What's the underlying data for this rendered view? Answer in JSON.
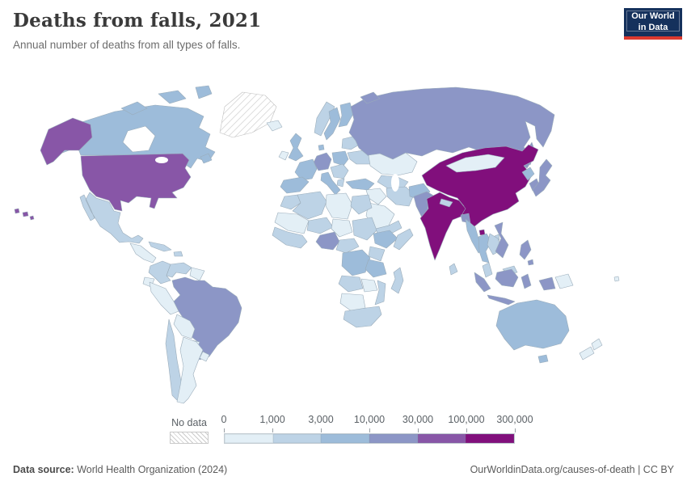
{
  "header": {
    "title": "Deaths from falls, 2021",
    "subtitle": "Annual number of deaths from all types of falls.",
    "logo_line1": "Our World",
    "logo_line2": "in Data",
    "logo_bg_color": "#15315c",
    "logo_accent_color": "#dc3a2f"
  },
  "legend": {
    "no_data_label": "No data",
    "tick_labels": [
      "0",
      "1,000",
      "3,000",
      "10,000",
      "30,000",
      "100,000",
      "300,000"
    ],
    "bin_colors": [
      "#e3eff6",
      "#bdd3e6",
      "#9dbcda",
      "#8c96c6",
      "#8856a7",
      "#810f7c"
    ],
    "no_data_pattern": "diagonal-hatch"
  },
  "footer": {
    "source_label": "Data source:",
    "source_text": "World Health Organization (2024)",
    "credit": "OurWorldinData.org/causes-of-death | CC BY"
  },
  "chart_data": {
    "type": "heatmap",
    "subtype": "choropleth-world-map",
    "title": "Deaths from falls, 2021",
    "subtitle": "Annual number of deaths from all types of falls.",
    "year": 2021,
    "unit": "deaths from all types of falls",
    "scale": "log-binned",
    "bins": [
      "0-1,000",
      "1,000-3,000",
      "3,000-10,000",
      "10,000-30,000",
      "30,000-100,000",
      "100,000-300,000"
    ],
    "bin_colors": [
      "#e3eff6",
      "#bdd3e6",
      "#9dbcda",
      "#8c96c6",
      "#8856a7",
      "#810f7c"
    ],
    "legend_position": "bottom",
    "regions": [
      {
        "id": "greenland",
        "name": "Greenland",
        "bin": null
      },
      {
        "id": "canada",
        "name": "Canada",
        "bin": 2
      },
      {
        "id": "usa",
        "name": "United States",
        "bin": 4
      },
      {
        "id": "mexico",
        "name": "Mexico",
        "bin": 1
      },
      {
        "id": "central-america",
        "name": "Central America",
        "bin": 0
      },
      {
        "id": "cuba",
        "name": "Cuba",
        "bin": 1
      },
      {
        "id": "hispaniola",
        "name": "Hispaniola",
        "bin": 1
      },
      {
        "id": "colombia",
        "name": "Colombia",
        "bin": 1
      },
      {
        "id": "venezuela",
        "name": "Venezuela",
        "bin": 1
      },
      {
        "id": "guyanas",
        "name": "Guyana and Suriname",
        "bin": 0
      },
      {
        "id": "brazil",
        "name": "Brazil",
        "bin": 3
      },
      {
        "id": "ecuador",
        "name": "Ecuador",
        "bin": 0
      },
      {
        "id": "peru",
        "name": "Peru",
        "bin": 0
      },
      {
        "id": "bolivia",
        "name": "Bolivia",
        "bin": 0
      },
      {
        "id": "paraguay",
        "name": "Paraguay",
        "bin": 0
      },
      {
        "id": "chile",
        "name": "Chile",
        "bin": 1
      },
      {
        "id": "argentina",
        "name": "Argentina",
        "bin": 0
      },
      {
        "id": "uruguay",
        "name": "Uruguay",
        "bin": 0
      },
      {
        "id": "iceland",
        "name": "Iceland",
        "bin": 0
      },
      {
        "id": "uk",
        "name": "United Kingdom",
        "bin": 2
      },
      {
        "id": "ireland",
        "name": "Ireland",
        "bin": 0
      },
      {
        "id": "norway",
        "name": "Norway",
        "bin": 1
      },
      {
        "id": "sweden",
        "name": "Sweden",
        "bin": 2
      },
      {
        "id": "finland",
        "name": "Finland",
        "bin": 2
      },
      {
        "id": "baltics-belarus",
        "name": "Baltics and Belarus",
        "bin": 1
      },
      {
        "id": "denmark",
        "name": "Denmark",
        "bin": 2
      },
      {
        "id": "germany",
        "name": "Germany",
        "bin": 3
      },
      {
        "id": "poland",
        "name": "Poland",
        "bin": 2
      },
      {
        "id": "france",
        "name": "France",
        "bin": 2
      },
      {
        "id": "spain",
        "name": "Spain",
        "bin": 2
      },
      {
        "id": "italy",
        "name": "Italy",
        "bin": 2
      },
      {
        "id": "balkans",
        "name": "Balkans and Romania",
        "bin": 1
      },
      {
        "id": "greece",
        "name": "Greece",
        "bin": 1
      },
      {
        "id": "ukraine",
        "name": "Ukraine",
        "bin": 1
      },
      {
        "id": "turkey",
        "name": "Turkey",
        "bin": 2
      },
      {
        "id": "russia",
        "name": "Russia",
        "bin": 3
      },
      {
        "id": "kazakhstan",
        "name": "Kazakhstan",
        "bin": 0
      },
      {
        "id": "central-asia",
        "name": "Central Asia",
        "bin": 1
      },
      {
        "id": "iran",
        "name": "Iran",
        "bin": 1
      },
      {
        "id": "iraq-syria",
        "name": "Iraq and Syria",
        "bin": 0
      },
      {
        "id": "saudi-arabia",
        "name": "Saudi Arabia",
        "bin": 0
      },
      {
        "id": "yemen-oman",
        "name": "Yemen and Oman",
        "bin": 1
      },
      {
        "id": "afghanistan",
        "name": "Afghanistan",
        "bin": 2
      },
      {
        "id": "pakistan",
        "name": "Pakistan",
        "bin": 3
      },
      {
        "id": "india",
        "name": "India",
        "bin": 5
      },
      {
        "id": "nepal",
        "name": "Nepal",
        "bin": 1
      },
      {
        "id": "bangladesh",
        "name": "Bangladesh",
        "bin": 3
      },
      {
        "id": "sri-lanka",
        "name": "Sri Lanka",
        "bin": 1
      },
      {
        "id": "china",
        "name": "China",
        "bin": 5
      },
      {
        "id": "taiwan",
        "name": "Taiwan",
        "bin": 1
      },
      {
        "id": "mongolia",
        "name": "Mongolia",
        "bin": 0
      },
      {
        "id": "north-korea",
        "name": "North Korea",
        "bin": 2
      },
      {
        "id": "south-korea",
        "name": "South Korea",
        "bin": 3
      },
      {
        "id": "japan",
        "name": "Japan",
        "bin": 3
      },
      {
        "id": "myanmar",
        "name": "Myanmar",
        "bin": 2
      },
      {
        "id": "thailand",
        "name": "Thailand",
        "bin": 2
      },
      {
        "id": "laos-cambodia",
        "name": "Laos and Cambodia",
        "bin": 1
      },
      {
        "id": "vietnam",
        "name": "Vietnam",
        "bin": 3
      },
      {
        "id": "malaysia",
        "name": "Malaysia",
        "bin": 1
      },
      {
        "id": "indonesia",
        "name": "Indonesia",
        "bin": 3
      },
      {
        "id": "philippines",
        "name": "Philippines",
        "bin": 3
      },
      {
        "id": "papua-new-guinea",
        "name": "Papua New Guinea",
        "bin": 0
      },
      {
        "id": "australia",
        "name": "Australia",
        "bin": 2
      },
      {
        "id": "new-zealand",
        "name": "New Zealand",
        "bin": 0
      },
      {
        "id": "fiji",
        "name": "Fiji",
        "bin": 0
      },
      {
        "id": "morocco",
        "name": "Morocco",
        "bin": 1
      },
      {
        "id": "algeria",
        "name": "Algeria",
        "bin": 1
      },
      {
        "id": "libya",
        "name": "Libya",
        "bin": 0
      },
      {
        "id": "egypt",
        "name": "Egypt",
        "bin": 1
      },
      {
        "id": "mauritania-mali",
        "name": "Mauritania and Mali",
        "bin": 0
      },
      {
        "id": "niger",
        "name": "Niger",
        "bin": 1
      },
      {
        "id": "chad",
        "name": "Chad",
        "bin": 0
      },
      {
        "id": "sudan",
        "name": "Sudan",
        "bin": 1
      },
      {
        "id": "west-africa",
        "name": "West Africa coast",
        "bin": 1
      },
      {
        "id": "nigeria",
        "name": "Nigeria",
        "bin": 3
      },
      {
        "id": "cameroon-car",
        "name": "Cameroon and Central Africa",
        "bin": 1
      },
      {
        "id": "ethiopia",
        "name": "Ethiopia",
        "bin": 2
      },
      {
        "id": "somalia",
        "name": "Somalia",
        "bin": 1
      },
      {
        "id": "kenya-uganda",
        "name": "Kenya and Uganda",
        "bin": 1
      },
      {
        "id": "dr-congo",
        "name": "Democratic Republic of Congo",
        "bin": 2
      },
      {
        "id": "tanzania",
        "name": "Tanzania",
        "bin": 2
      },
      {
        "id": "angola",
        "name": "Angola",
        "bin": 1
      },
      {
        "id": "zambia",
        "name": "Zambia",
        "bin": 0
      },
      {
        "id": "mozambique",
        "name": "Mozambique",
        "bin": 1
      },
      {
        "id": "zimbabwe-botswana-namibia",
        "name": "Zimbabwe, Botswana, Namibia",
        "bin": 0
      },
      {
        "id": "south-africa",
        "name": "South Africa",
        "bin": 1
      },
      {
        "id": "madagascar",
        "name": "Madagascar",
        "bin": 1
      }
    ]
  }
}
